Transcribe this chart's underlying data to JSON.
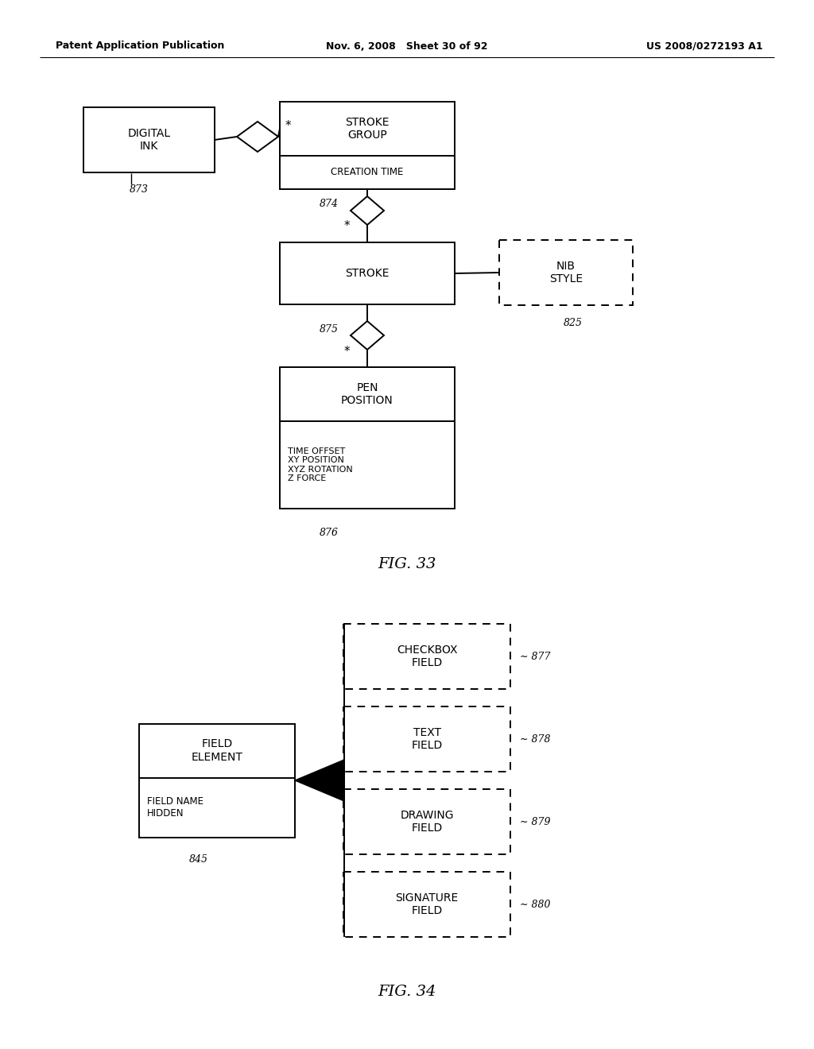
{
  "header_left": "Patent Application Publication",
  "header_mid": "Nov. 6, 2008   Sheet 30 of 92",
  "header_right": "US 2008/0272193 A1",
  "fig33_title": "FIG. 33",
  "fig34_title": "FIG. 34",
  "bg_color": "#ffffff",
  "line_color": "#000000"
}
